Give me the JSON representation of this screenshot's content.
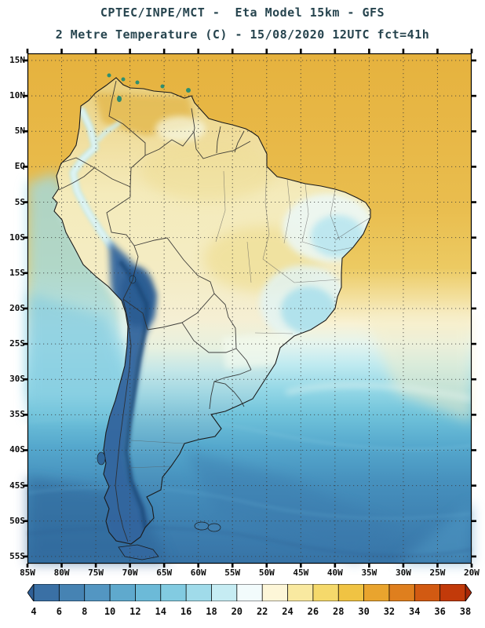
{
  "header": {
    "line1": "CPTEC/INPE/MCT -  Eta Model 15km - GFS",
    "line2": "2 Metre Temperature (C) - 15/08/2020 12UTC fct=41h"
  },
  "map": {
    "lat_labels": [
      "15N",
      "10N",
      "5N",
      "EQ",
      "5S",
      "10S",
      "15S",
      "20S",
      "25S",
      "30S",
      "35S",
      "40S",
      "45S",
      "50S",
      "55S"
    ],
    "lon_labels": [
      "85W",
      "80W",
      "75W",
      "70W",
      "65W",
      "60W",
      "55W",
      "50W",
      "45W",
      "40W",
      "35W",
      "30W",
      "25W",
      "20W"
    ]
  },
  "colorbar": {
    "unit": "C",
    "tick_labels": [
      "4",
      "6",
      "8",
      "10",
      "12",
      "14",
      "16",
      "18",
      "20",
      "22",
      "24",
      "26",
      "28",
      "30",
      "32",
      "34",
      "36",
      "38"
    ],
    "colors": [
      "#2f5f96",
      "#3a70a5",
      "#4683b3",
      "#5396c2",
      "#5fa9cd",
      "#6cbad8",
      "#82cbe1",
      "#a0dbea",
      "#c6ecf3",
      "#f2fbfc",
      "#fdf6d8",
      "#f9e9a0",
      "#f5d96b",
      "#f0c343",
      "#e9a42e",
      "#df7f1e",
      "#d25a12",
      "#c23a0a",
      "#a82808"
    ]
  }
}
